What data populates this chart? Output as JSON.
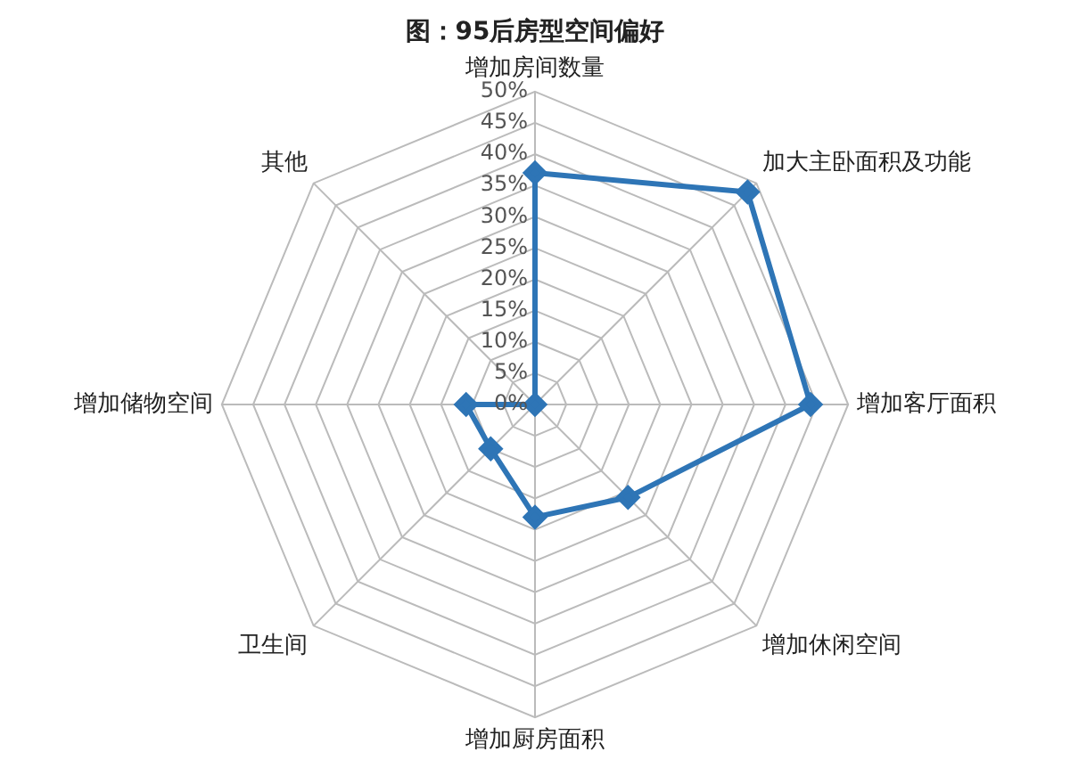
{
  "chart_data": {
    "type": "radar",
    "title": "图：95后房型空间偏好",
    "categories": [
      "增加房间数量",
      "加大主卧面积及功能",
      "增加客厅面积",
      "增加休闲空间",
      "增加厨房面积",
      "卫生间",
      "增加储物空间",
      "其他"
    ],
    "series": [
      {
        "color": "#2e75b6",
        "values": [
          37,
          48,
          44,
          21,
          18,
          10,
          11,
          0
        ]
      }
    ],
    "ylim": [
      0,
      50
    ],
    "yticks": [
      {
        "value": 0,
        "label": "0%"
      },
      {
        "value": 5,
        "label": "5%"
      },
      {
        "value": 10,
        "label": "10%"
      },
      {
        "value": 15,
        "label": "15%"
      },
      {
        "value": 20,
        "label": "20%"
      },
      {
        "value": 25,
        "label": "25%"
      },
      {
        "value": 30,
        "label": "30%"
      },
      {
        "value": 35,
        "label": "35%"
      },
      {
        "value": 40,
        "label": "40%"
      },
      {
        "value": 45,
        "label": "45%"
      },
      {
        "value": 50,
        "label": "50%"
      }
    ],
    "grid": true,
    "legend": false,
    "marker": "diamond",
    "line_style": "solid"
  }
}
